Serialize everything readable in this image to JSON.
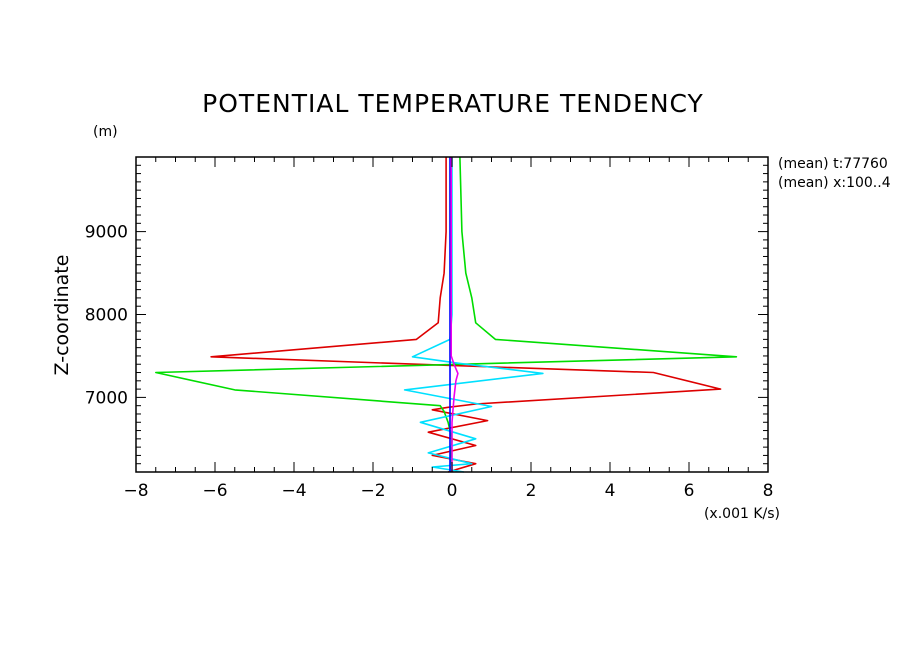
{
  "chart_data": {
    "type": "line",
    "title": "POTENTIAL TEMPERATURE TENDENCY",
    "xlabel": "(x.001 K/s)",
    "ylabel": "Z-coordinate",
    "y_units": "(m)",
    "annotations": [
      "(mean) t:77760",
      "(mean) x:100..4"
    ],
    "xlim": [
      -8,
      8
    ],
    "ylim": [
      6100,
      9900
    ],
    "x_ticks": [
      -8,
      -6,
      -4,
      -2,
      0,
      2,
      4,
      6,
      8
    ],
    "x_tick_labels": [
      "−8",
      "−6",
      "−4",
      "−2",
      "0",
      "2",
      "4",
      "6",
      "8"
    ],
    "y_ticks": [
      7000,
      8000,
      9000
    ],
    "y_tick_labels": [
      "7000",
      "8000",
      "9000"
    ],
    "grid": false,
    "colors": {
      "red": "#dd0000",
      "green": "#00dd00",
      "cyan": "#00e0ff",
      "blue": "#0000ff",
      "magenta": "#ee00ee"
    },
    "series": [
      {
        "color": "red",
        "x": [
          -0.15,
          -0.15,
          -0.2,
          -0.3,
          -0.35,
          -0.9,
          -6.1,
          -0.3,
          5.1,
          6.8,
          0.6,
          -0.1,
          -0.5,
          0.9,
          -0.6,
          0.6,
          -0.5,
          0.6,
          -0.1
        ],
        "y": [
          9900,
          9000,
          8500,
          8200,
          7900,
          7700,
          7490,
          7390,
          7300,
          7100,
          6920,
          6880,
          6850,
          6720,
          6580,
          6420,
          6300,
          6200,
          6100
        ]
      },
      {
        "color": "green",
        "x": [
          0.2,
          0.25,
          0.35,
          0.5,
          0.6,
          1.1,
          7.2,
          -7.5,
          -5.5,
          -0.3,
          -0.2,
          -0.1,
          0.0,
          -0.05
        ],
        "y": [
          9900,
          9000,
          8500,
          8200,
          7900,
          7700,
          7490,
          7300,
          7090,
          6900,
          6830,
          6700,
          6500,
          6100
        ]
      },
      {
        "color": "cyan",
        "x": [
          0.0,
          0.0,
          -0.05,
          -1.0,
          0.2,
          2.3,
          -1.2,
          1.0,
          -0.8,
          0.6,
          -0.6,
          0.5,
          -0.5,
          0.3
        ],
        "y": [
          9900,
          8000,
          7700,
          7490,
          7410,
          7290,
          7090,
          6890,
          6700,
          6500,
          6330,
          6200,
          6160,
          6100
        ]
      },
      {
        "color": "blue",
        "x": [
          -0.05,
          -0.05,
          -0.05,
          -0.05
        ],
        "y": [
          9900,
          8000,
          7000,
          6100
        ]
      },
      {
        "color": "magenta",
        "x": [
          -0.02,
          -0.02,
          0.05,
          0.15,
          0.1,
          0.05,
          0.0,
          0.0
        ],
        "y": [
          9900,
          7500,
          7400,
          7290,
          7200,
          7000,
          6700,
          6100
        ]
      }
    ]
  }
}
